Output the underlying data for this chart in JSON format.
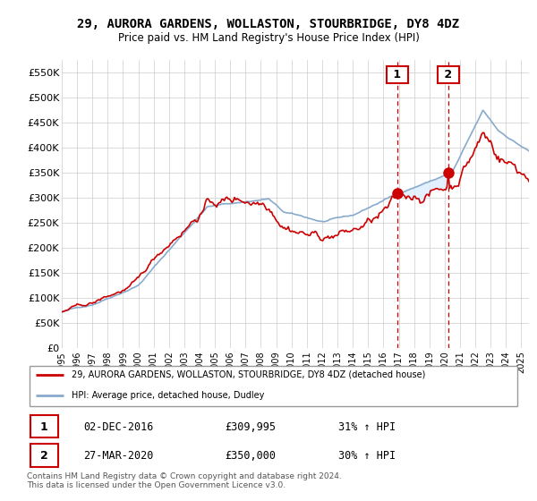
{
  "title": "29, AURORA GARDENS, WOLLASTON, STOURBRIDGE, DY8 4DZ",
  "subtitle": "Price paid vs. HM Land Registry's House Price Index (HPI)",
  "legend_line1": "29, AURORA GARDENS, WOLLASTON, STOURBRIDGE, DY8 4DZ (detached house)",
  "legend_line2": "HPI: Average price, detached house, Dudley",
  "table_rows": [
    {
      "num": "1",
      "date": "02-DEC-2016",
      "price": "£309,995",
      "change": "31% ↑ HPI"
    },
    {
      "num": "2",
      "date": "27-MAR-2020",
      "price": "£350,000",
      "change": "30% ↑ HPI"
    }
  ],
  "footnote": "Contains HM Land Registry data © Crown copyright and database right 2024.\nThis data is licensed under the Open Government Licence v3.0.",
  "ylim": [
    0,
    575000
  ],
  "yticks": [
    0,
    50000,
    100000,
    150000,
    200000,
    250000,
    300000,
    350000,
    400000,
    450000,
    500000,
    550000
  ],
  "ytick_labels": [
    "£0",
    "£50K",
    "£100K",
    "£150K",
    "£200K",
    "£250K",
    "£300K",
    "£350K",
    "£400K",
    "£450K",
    "£500K",
    "£550K"
  ],
  "red_color": "#cc0000",
  "blue_color": "#88aacc",
  "shade_color": "#ddeeff",
  "sale1_year": 2016.92,
  "sale2_year": 2020.25,
  "sale1_price": 309995,
  "sale2_price": 350000
}
